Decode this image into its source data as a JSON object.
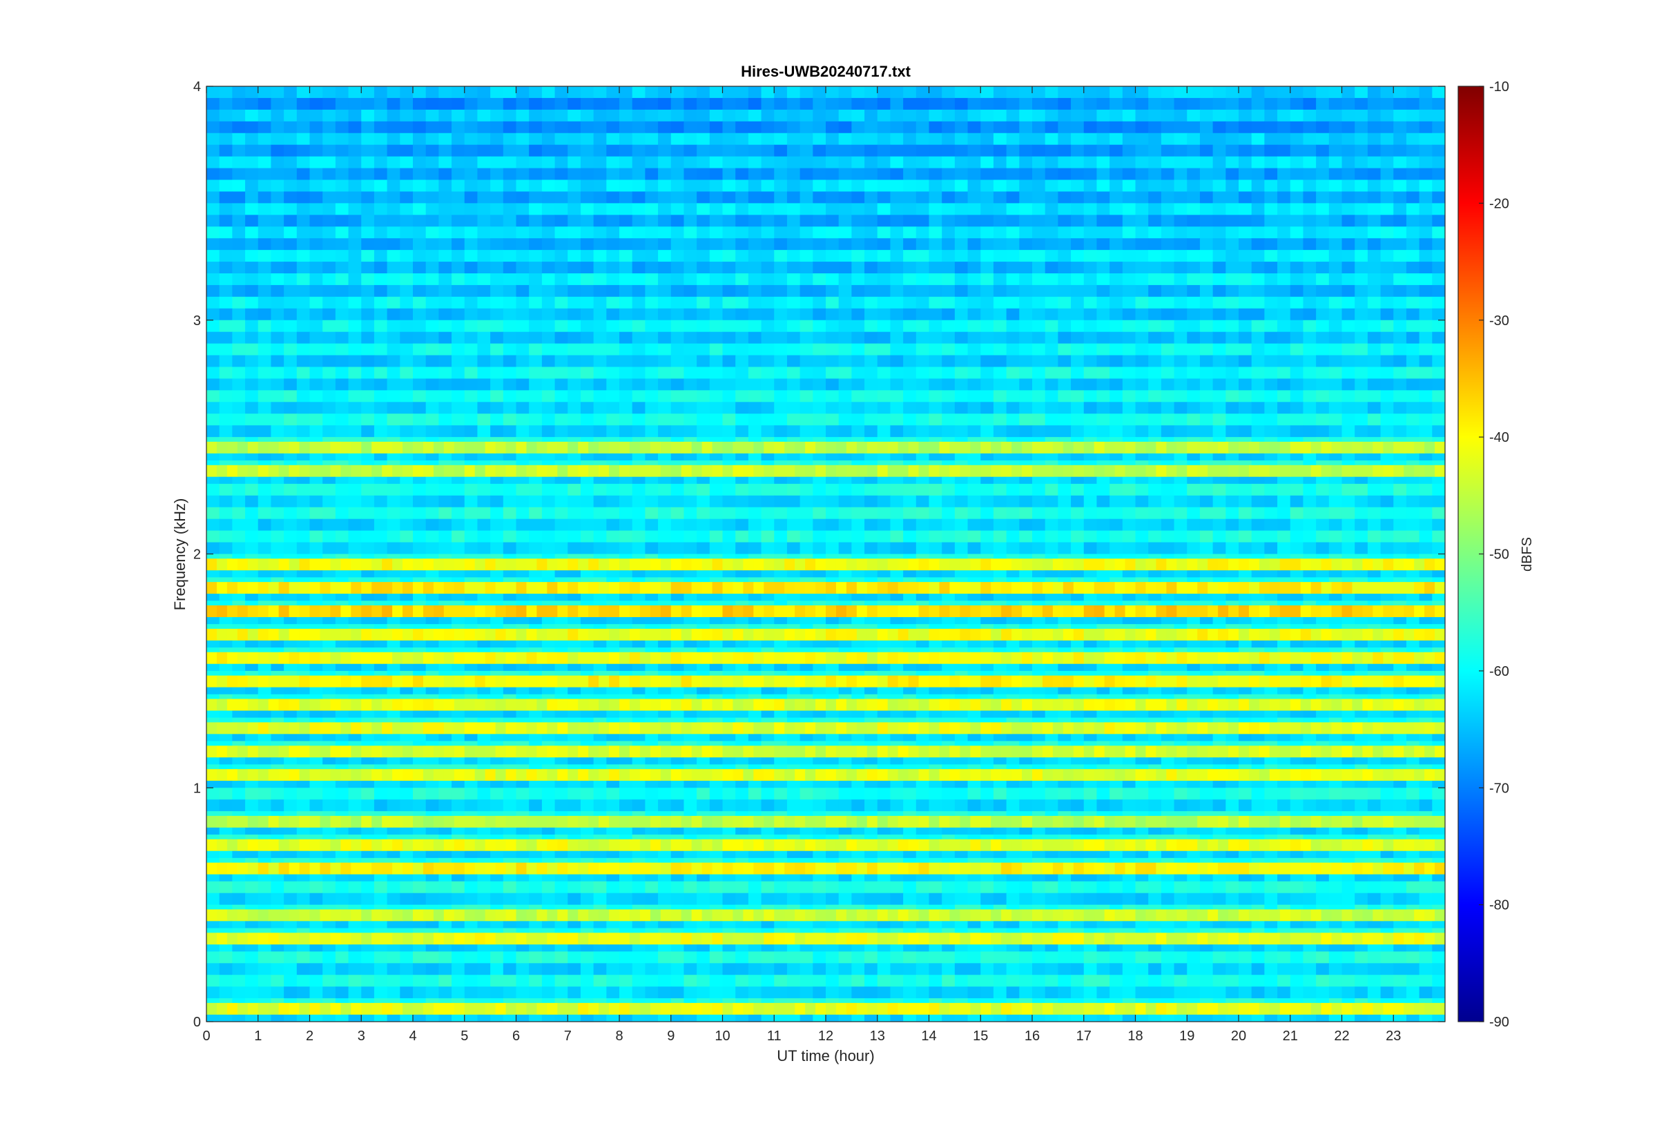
{
  "chart_data": {
    "type": "heatmap",
    "title": "Hires-UWB20240717.txt",
    "xlabel": "UT time (hour)",
    "ylabel": "Frequency (kHz)",
    "xlim": [
      0,
      24
    ],
    "ylim": [
      0,
      4
    ],
    "x_ticks": [
      0,
      1,
      2,
      3,
      4,
      5,
      6,
      7,
      8,
      9,
      10,
      11,
      12,
      13,
      14,
      15,
      16,
      17,
      18,
      19,
      20,
      21,
      22,
      23
    ],
    "y_ticks": [
      0,
      1,
      2,
      3,
      4
    ],
    "colorbar": {
      "label": "dBFS",
      "colormap": "jet",
      "range": [
        -90,
        -10
      ],
      "ticks": [
        -90,
        -80,
        -70,
        -60,
        -50,
        -40,
        -30,
        -20,
        -10
      ]
    },
    "bands": [
      {
        "f_low": 0.03,
        "f_high": 0.08,
        "level_dbfs": -42
      },
      {
        "f_low": 0.33,
        "f_high": 0.38,
        "level_dbfs": -42
      },
      {
        "f_low": 0.43,
        "f_high": 0.48,
        "level_dbfs": -44
      },
      {
        "f_low": 0.63,
        "f_high": 0.68,
        "level_dbfs": -40
      },
      {
        "f_low": 0.73,
        "f_high": 0.78,
        "level_dbfs": -42
      },
      {
        "f_low": 0.83,
        "f_high": 0.88,
        "level_dbfs": -45
      },
      {
        "f_low": 1.03,
        "f_high": 1.08,
        "level_dbfs": -42
      },
      {
        "f_low": 1.13,
        "f_high": 1.18,
        "level_dbfs": -43
      },
      {
        "f_low": 1.23,
        "f_high": 1.28,
        "level_dbfs": -42
      },
      {
        "f_low": 1.33,
        "f_high": 1.38,
        "level_dbfs": -42
      },
      {
        "f_low": 1.43,
        "f_high": 1.48,
        "level_dbfs": -40
      },
      {
        "f_low": 1.53,
        "f_high": 1.58,
        "level_dbfs": -41
      },
      {
        "f_low": 1.63,
        "f_high": 1.68,
        "level_dbfs": -41
      },
      {
        "f_low": 1.73,
        "f_high": 1.78,
        "level_dbfs": -37
      },
      {
        "f_low": 1.83,
        "f_high": 1.88,
        "level_dbfs": -39
      },
      {
        "f_low": 1.93,
        "f_high": 1.98,
        "level_dbfs": -41
      },
      {
        "f_low": 2.33,
        "f_high": 2.38,
        "level_dbfs": -44
      },
      {
        "f_low": 2.43,
        "f_high": 2.48,
        "level_dbfs": -45
      }
    ],
    "background_level_dbfs": -60
  }
}
